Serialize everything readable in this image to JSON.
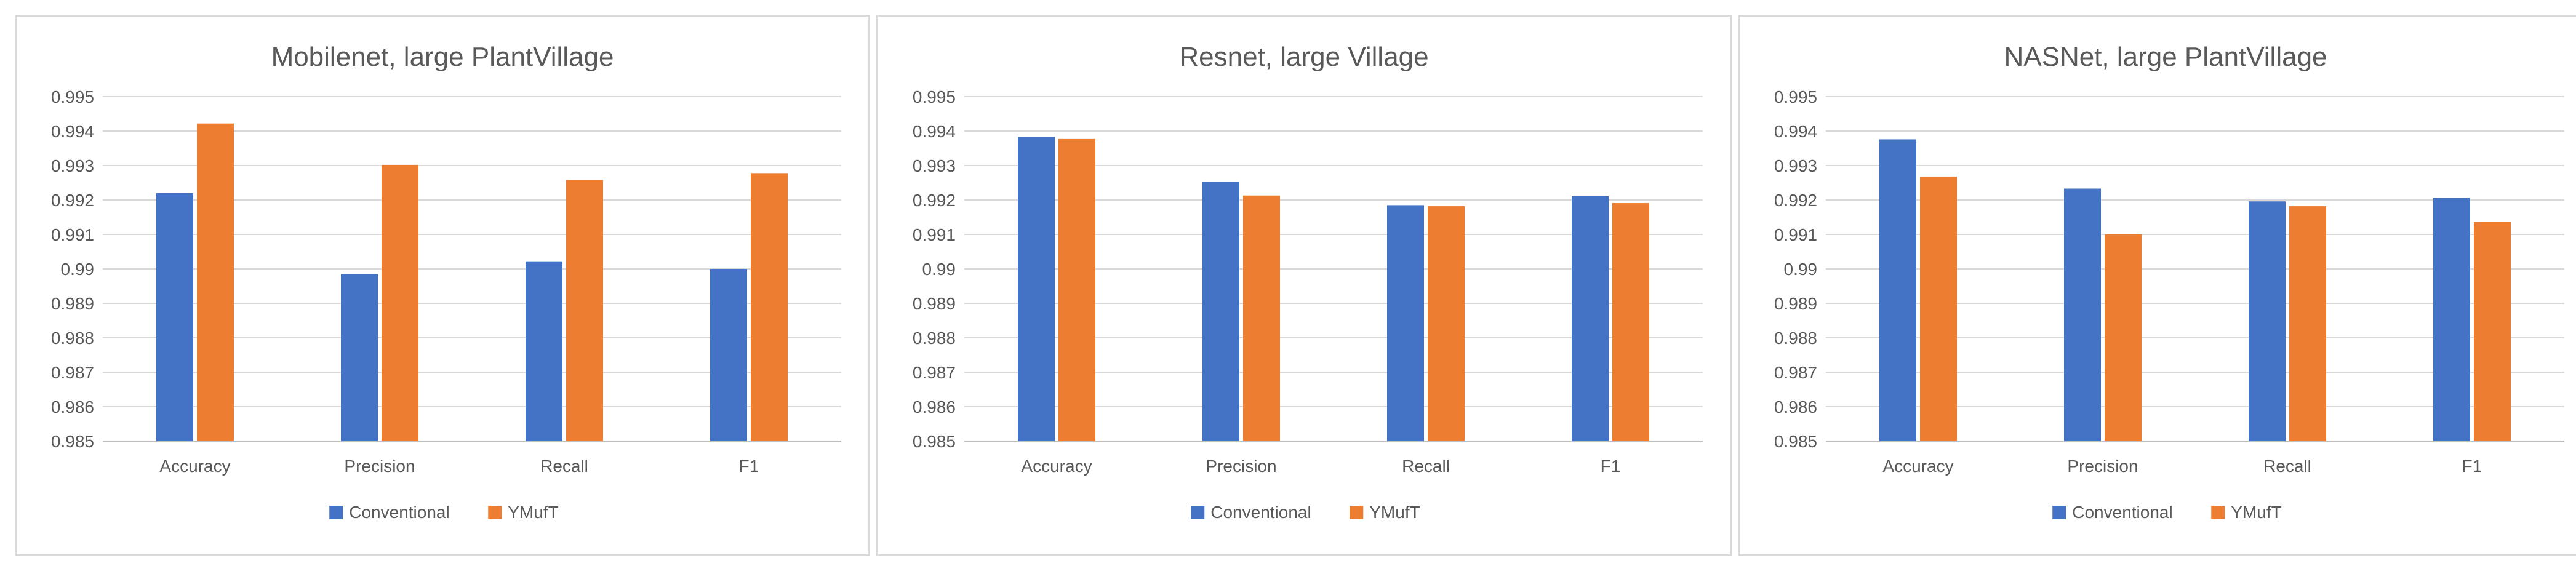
{
  "chart_data": [
    {
      "type": "bar",
      "title": "Mobilenet, large PlantVillage",
      "categories": [
        "Accuracy",
        "Precision",
        "Recall",
        "F1"
      ],
      "series": [
        {
          "name": "Conventional",
          "values": [
            0.9922,
            0.98985,
            0.99022,
            0.99
          ]
        },
        {
          "name": "YMufT",
          "values": [
            0.99422,
            0.99302,
            0.99258,
            0.99278
          ]
        }
      ],
      "xlabel": "",
      "ylabel": "",
      "ylim": [
        0.985,
        0.995
      ],
      "y_ticks": [
        "0.985",
        "0.986",
        "0.987",
        "0.988",
        "0.989",
        "0.99",
        "0.991",
        "0.992",
        "0.993",
        "0.994",
        "0.995"
      ],
      "grid": true,
      "legend_position": "bottom"
    },
    {
      "type": "bar",
      "title": "Resnet, large Village",
      "categories": [
        "Accuracy",
        "Precision",
        "Recall",
        "F1"
      ],
      "series": [
        {
          "name": "Conventional",
          "values": [
            0.99383,
            0.99252,
            0.99185,
            0.99211
          ]
        },
        {
          "name": "YMufT",
          "values": [
            0.99377,
            0.99213,
            0.99182,
            0.99191
          ]
        }
      ],
      "xlabel": "",
      "ylabel": "",
      "ylim": [
        0.985,
        0.995
      ],
      "y_ticks": [
        "0.985",
        "0.986",
        "0.987",
        "0.988",
        "0.989",
        "0.99",
        "0.991",
        "0.992",
        "0.993",
        "0.994",
        "0.995"
      ],
      "grid": true,
      "legend_position": "bottom"
    },
    {
      "type": "bar",
      "title": "NASNet, large PlantVillage",
      "categories": [
        "Accuracy",
        "Precision",
        "Recall",
        "F1"
      ],
      "series": [
        {
          "name": "Conventional",
          "values": [
            0.99376,
            0.99233,
            0.99196,
            0.99206
          ]
        },
        {
          "name": "YMufT",
          "values": [
            0.99268,
            0.991,
            0.99182,
            0.99136
          ]
        }
      ],
      "xlabel": "",
      "ylabel": "",
      "ylim": [
        0.985,
        0.995
      ],
      "y_ticks": [
        "0.985",
        "0.986",
        "0.987",
        "0.988",
        "0.989",
        "0.99",
        "0.991",
        "0.992",
        "0.993",
        "0.994",
        "0.995"
      ],
      "grid": true,
      "legend_position": "bottom"
    }
  ],
  "colors": {
    "Conventional": "#4472c4",
    "YMufT": "#ed7d31"
  }
}
